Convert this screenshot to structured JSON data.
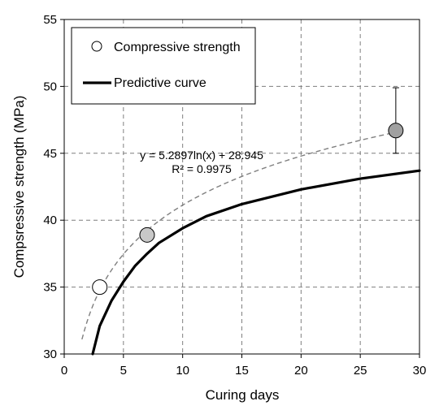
{
  "chart_data": {
    "type": "scatter",
    "title": "",
    "xlabel": "Curing days",
    "ylabel": "Compsressive strength (MPa)",
    "xlim": [
      0,
      30
    ],
    "ylim": [
      30,
      55
    ],
    "x_ticks": [
      0,
      5,
      10,
      15,
      20,
      25,
      30
    ],
    "y_ticks": [
      30,
      35,
      40,
      45,
      50,
      55
    ],
    "grid": true,
    "legend_position": "top-left",
    "series": [
      {
        "name": "Compressive strength",
        "kind": "points",
        "x": [
          3,
          7,
          28
        ],
        "y": [
          35.0,
          38.9,
          46.7
        ],
        "marker_fills": [
          "#ffffff",
          "#c8c8c8",
          "#a0a0a0"
        ],
        "error_bars": [
          null,
          null,
          [
            45.0,
            49.9
          ]
        ]
      },
      {
        "name": "Predictive curve",
        "kind": "line",
        "x": [
          2.4,
          3,
          4,
          5,
          6,
          7,
          8,
          10,
          12,
          15,
          20,
          25,
          30
        ],
        "y": [
          30.0,
          32.1,
          34.0,
          35.4,
          36.6,
          37.5,
          38.3,
          39.4,
          40.3,
          41.2,
          42.3,
          43.1,
          43.7
        ],
        "color": "#000000"
      }
    ],
    "trendline": {
      "equation": "y = 5.2897ln(x) + 28.945",
      "r_squared": "R² = 0.9975",
      "a": 5.2897,
      "b": 28.945,
      "x_range": [
        1.5,
        28
      ],
      "color": "#7f7f7f"
    }
  }
}
